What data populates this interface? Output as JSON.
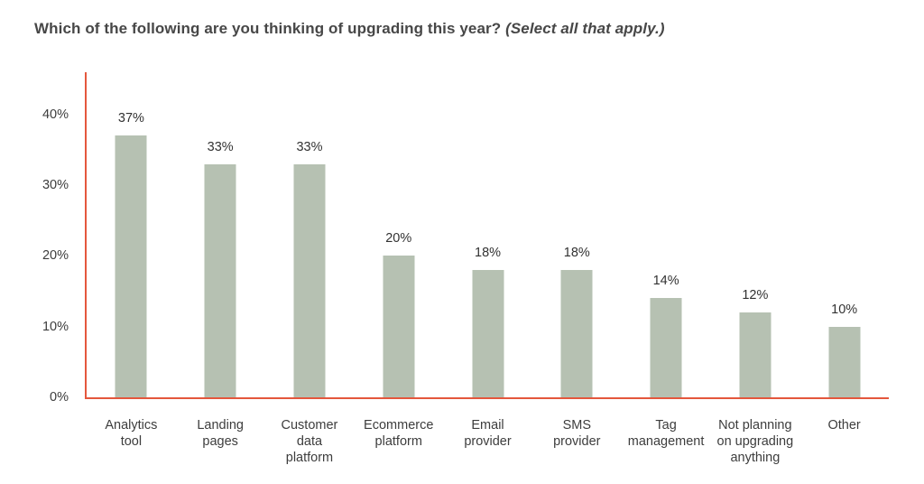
{
  "title": {
    "main": "Which of the following are you thinking of upgrading this year?",
    "note": "(Select all that apply.)"
  },
  "chart_data": {
    "type": "bar",
    "title": "Which of the following are you thinking of upgrading this year? (Select all that apply.)",
    "categories": [
      "Analytics tool",
      "Landing pages",
      "Customer data platform",
      "Ecommerce platform",
      "Email provider",
      "SMS provider",
      "Tag management",
      "Not planning on upgrading anything",
      "Other"
    ],
    "categories_display": [
      "Analytics\ntool",
      "Landing\npages",
      "Customer\ndata\nplatform",
      "Ecommerce\nplatform",
      "Email\nprovider",
      "SMS\nprovider",
      "Tag\nmanagement",
      "Not planning\non upgrading\nanything",
      "Other"
    ],
    "values": [
      37,
      33,
      33,
      20,
      18,
      18,
      14,
      12,
      10
    ],
    "value_labels": [
      "37%",
      "33%",
      "33%",
      "20%",
      "18%",
      "18%",
      "14%",
      "12%",
      "10%"
    ],
    "xlabel": "",
    "ylabel": "",
    "y_ticks": [
      {
        "label": "0%",
        "value": 0
      },
      {
        "label": "10%",
        "value": 10
      },
      {
        "label": "20%",
        "value": 20
      },
      {
        "label": "30%",
        "value": 30
      },
      {
        "label": "40%",
        "value": 40
      }
    ],
    "ylim": [
      0,
      46
    ],
    "grid": false,
    "legend": false,
    "colors": {
      "bar": "#b6c1b2",
      "axis": "#e4573d",
      "text": "#3d3d3d"
    }
  }
}
